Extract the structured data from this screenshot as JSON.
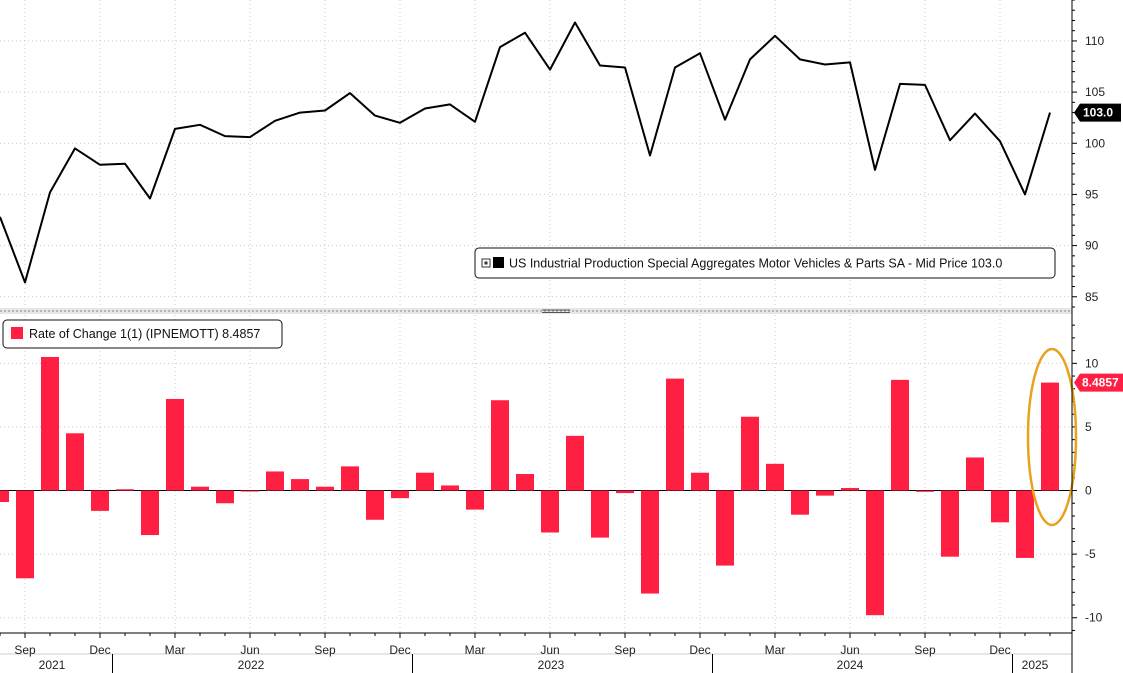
{
  "chart_data": [
    {
      "type": "line",
      "legend": "US Industrial Production Special Aggregates Motor Vehicles & Parts SA - Mid Price 103.0",
      "last_value_label": "103.0",
      "ylim": [
        84,
        114
      ],
      "yticks": [
        85,
        90,
        95,
        100,
        105,
        110
      ],
      "color": "#000000",
      "series": [
        {
          "values": [
            92.8,
            86.4,
            95.2,
            99.5,
            97.9,
            98.0,
            94.6,
            101.4,
            101.8,
            100.7,
            100.6,
            102.2,
            103.0,
            103.2,
            104.9,
            102.7,
            102.0,
            103.4,
            103.8,
            102.1,
            109.4,
            110.8,
            107.2,
            111.8,
            107.6,
            107.4,
            98.8,
            107.4,
            108.8,
            102.3,
            108.2,
            110.5,
            108.2,
            107.7,
            107.9,
            97.4,
            105.8,
            105.7,
            100.3,
            102.9,
            100.2,
            95.0,
            103.0
          ]
        }
      ]
    },
    {
      "type": "bar",
      "legend": "Rate of Change 1(1) (IPNEMOTT) 8.4857",
      "last_value_label": "8.4857",
      "ylim": [
        -11.2,
        13.8
      ],
      "yticks": [
        -10,
        -5,
        0,
        5,
        10
      ],
      "color": "#ff1f43",
      "series": [
        {
          "values": [
            -0.9,
            -6.9,
            10.5,
            4.5,
            -1.6,
            0.1,
            -3.5,
            7.2,
            0.3,
            -1.0,
            0.0,
            1.5,
            0.9,
            0.3,
            1.9,
            -2.3,
            -0.6,
            1.4,
            0.4,
            -1.5,
            7.1,
            1.3,
            -3.3,
            4.3,
            -3.7,
            -0.2,
            -8.1,
            8.8,
            1.4,
            -5.9,
            5.8,
            2.1,
            -1.9,
            -0.4,
            0.2,
            -9.8,
            8.7,
            -0.1,
            -5.2,
            2.6,
            -2.5,
            -5.3,
            8.4857
          ]
        }
      ]
    }
  ],
  "x_axis": {
    "month_labels": [
      "Sep",
      "Dec",
      "Mar",
      "Jun",
      "Sep",
      "Dec",
      "Mar",
      "Jun",
      "Sep",
      "Dec",
      "Mar",
      "Jun",
      "Sep",
      "Dec"
    ],
    "year_labels": [
      "2021",
      "2022",
      "2023",
      "2024",
      "2025"
    ]
  },
  "annotation": {
    "highlight": "latest-bar",
    "color": "#e8a21d"
  }
}
